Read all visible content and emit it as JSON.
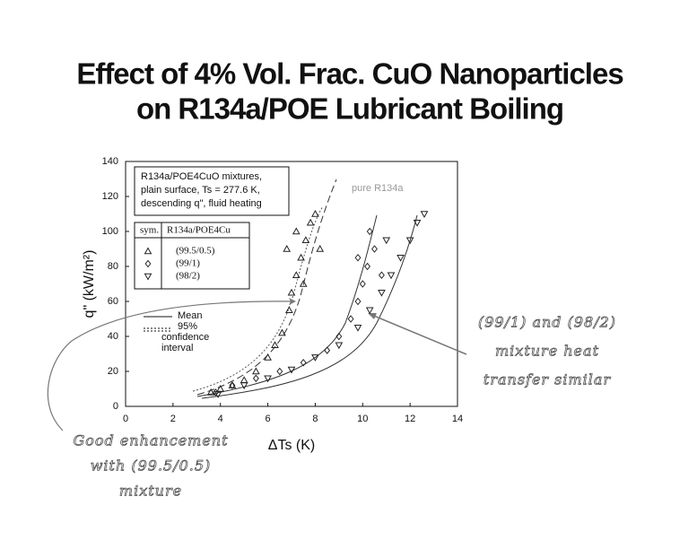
{
  "title": [
    "Effect of 4% Vol. Frac. CuO Nanoparticles",
    "on R134a/POE Lubricant Boiling"
  ],
  "annotations": [
    {
      "lines": [
        "(99/1) and (98/2)",
        "mixture heat",
        "transfer similar"
      ]
    },
    {
      "lines": [
        "Good enhancement",
        "with (99.5/0.5)",
        "mixture"
      ]
    }
  ],
  "chart_data": {
    "type": "scatter",
    "xlabel": "ΔTs (K)",
    "ylabel": "q\" (kW/m²)",
    "xlim": [
      0,
      14
    ],
    "xticks": [
      0,
      2,
      4,
      6,
      8,
      10,
      12,
      14
    ],
    "ylim": [
      0,
      140
    ],
    "yticks": [
      0,
      20,
      40,
      60,
      80,
      100,
      120,
      140
    ],
    "reference_label": "pure R134a",
    "legend": {
      "box_lines": [
        "R134a/POE4CuO mixtures,",
        "plain surface, Ts = 277.6 K,",
        "descending q\", fluid heating"
      ],
      "table_header": [
        "sym.",
        "R134a/POE4Cu"
      ],
      "lines": [
        "Mean",
        "95%",
        "confidence",
        "interval"
      ]
    },
    "series": [
      {
        "name": "(99.5/0.5)",
        "marker": "triangle-up",
        "color": "#222",
        "x": [
          3.6,
          4,
          4.5,
          5,
          5.5,
          6,
          6.3,
          6.6,
          6.9,
          7,
          7.2,
          7.4,
          7.6,
          7.8,
          8,
          6.8,
          7.2,
          7.5,
          8.2
        ],
        "values": [
          8,
          10,
          12,
          15,
          20,
          28,
          35,
          42,
          55,
          65,
          75,
          85,
          95,
          105,
          110,
          90,
          100,
          70,
          90
        ]
      },
      {
        "name": "(99/1)",
        "marker": "diamond",
        "color": "#222",
        "x": [
          3.8,
          4.5,
          5.5,
          6.5,
          7.5,
          8.5,
          9,
          9.5,
          9.8,
          10,
          10.2,
          10.5,
          10.3,
          9.8,
          10.8
        ],
        "values": [
          8,
          12,
          16,
          20,
          25,
          32,
          40,
          50,
          60,
          70,
          80,
          90,
          100,
          85,
          75
        ]
      },
      {
        "name": "(98/2)",
        "marker": "triangle-down",
        "color": "#222",
        "x": [
          3.9,
          5,
          6,
          7,
          8,
          9,
          9.8,
          10.3,
          10.8,
          11.2,
          11.6,
          12,
          12.3,
          12.6,
          11
        ],
        "values": [
          7,
          12,
          16,
          21,
          28,
          35,
          45,
          55,
          65,
          75,
          85,
          95,
          105,
          110,
          95
        ]
      }
    ]
  }
}
